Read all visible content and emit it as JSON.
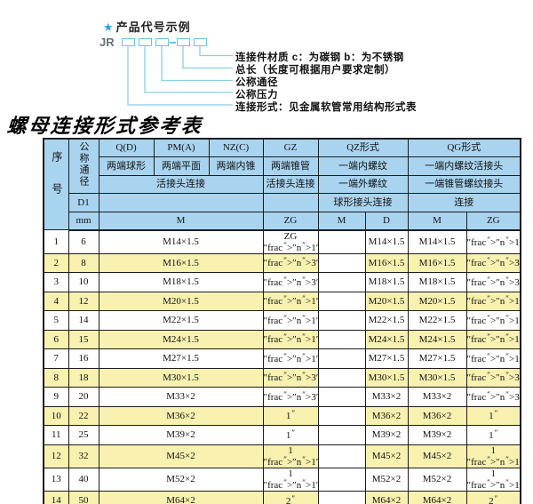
{
  "colors": {
    "header_bg": "#a9d4f0",
    "row_alt_bg": "#f8f1af",
    "accent_blue": "#8ccfe8",
    "box_blue": "#6ec4e4",
    "star_blue": "#2aa4dc"
  },
  "diagram": {
    "star": "★",
    "title": "产品代号示例",
    "prefix": "JR",
    "box_count": 5,
    "labels": [
      "连接件材质  c：为碳钢  b：为不锈钢",
      "总长（长度可根据用户要求定制）",
      "公称通径",
      "公称压力",
      "连接形式：见金属软管常用结构形式表"
    ]
  },
  "table": {
    "title": "螺母连接形式参考表",
    "header": {
      "col_no": "序号",
      "col_dn": "公称通径",
      "q": "Q(D)",
      "pm": "PM(A)",
      "nz": "NZ(C)",
      "gz": "GZ",
      "qz": "QZ形式",
      "qg": "QG形式",
      "q_sub": "两端球形",
      "pm_sub": "两端平面",
      "nz_sub": "两端内锥",
      "gz_sub": "两端锥管",
      "qz_sub1": "一端内螺纹",
      "qg_sub1": "一端内螺纹活接头",
      "union_conn": "活接头连接",
      "gz_conn": "活接头连接",
      "qz_sub2": "一端外螺纹",
      "qg_sub2": "一端锥管螺纹接头",
      "d1": "D1",
      "qz_conn": "球形接头连接",
      "qg_conn": "连接",
      "mm": "mm",
      "m": "M",
      "zg": "ZG",
      "qz_m": "M",
      "qz_d": "D",
      "qg_m": "M",
      "qg_zg": "ZG"
    },
    "rows": [
      {
        "no": "1",
        "dn": "6",
        "m": "M14×1.5",
        "gz": "ZG 1/4\"",
        "qz_m": "",
        "qz_d": "M14×1.5",
        "qg_m": "M14×1.5",
        "qg_zg": "1/4\""
      },
      {
        "no": "2",
        "dn": "8",
        "m": "M16×1.5",
        "gz": "3/8\"",
        "qz_m": "",
        "qz_d": "M16×1.5",
        "qg_m": "M16×1.5",
        "qg_zg": "3/8\""
      },
      {
        "no": "3",
        "dn": "10",
        "m": "M18×1.5",
        "gz": "3/8\"",
        "qz_m": "",
        "qz_d": "M18×1.5",
        "qg_m": "M18×1.5",
        "qg_zg": "3/8\""
      },
      {
        "no": "4",
        "dn": "12",
        "m": "M20×1.5",
        "gz": "1/2\"",
        "qz_m": "",
        "qz_d": "M20×1.5",
        "qg_m": "M20×1.5",
        "qg_zg": "1/2\""
      },
      {
        "no": "5",
        "dn": "14",
        "m": "M22×1.5",
        "gz": "1/2\"",
        "qz_m": "",
        "qz_d": "M22×1.5",
        "qg_m": "M22×1.5",
        "qg_zg": "1/2\""
      },
      {
        "no": "6",
        "dn": "15",
        "m": "M24×1.5",
        "gz": "1/2\"",
        "qz_m": "",
        "qz_d": "M24×1.5",
        "qg_m": "M24×1.5",
        "qg_zg": "1/2\""
      },
      {
        "no": "7",
        "dn": "16",
        "m": "M27×1.5",
        "gz": "1/2\"",
        "qz_m": "",
        "qz_d": "M27×1.5",
        "qg_m": "M27×1.5",
        "qg_zg": "1/2\""
      },
      {
        "no": "8",
        "dn": "18",
        "m": "M30×1.5",
        "gz": "3/4\"",
        "qz_m": "",
        "qz_d": "M30×1.5",
        "qg_m": "M30×1.5",
        "qg_zg": "3/4\""
      },
      {
        "no": "9",
        "dn": "20",
        "m": "M33×2",
        "gz": "3/4\"",
        "qz_m": "",
        "qz_d": "M33×2",
        "qg_m": "M33×2",
        "qg_zg": "3/4\""
      },
      {
        "no": "10",
        "dn": "22",
        "m": "M36×2",
        "gz": "1\"",
        "qz_m": "",
        "qz_d": "M36×2",
        "qg_m": "M36×2",
        "qg_zg": "1\""
      },
      {
        "no": "11",
        "dn": "25",
        "m": "M39×2",
        "gz": "1\"",
        "qz_m": "",
        "qz_d": "M39×2",
        "qg_m": "M39×2",
        "qg_zg": "1\""
      },
      {
        "no": "12",
        "dn": "32",
        "m": "M45×2",
        "gz": "1 1/4\"",
        "qz_m": "",
        "qz_d": "M45×2",
        "qg_m": "M45×2",
        "qg_zg": "1 1/4\""
      },
      {
        "no": "13",
        "dn": "40",
        "m": "M52×2",
        "gz": "1 1/2\"",
        "qz_m": "",
        "qz_d": "M52×2",
        "qg_m": "M52×2",
        "qg_zg": "1 1/2\""
      },
      {
        "no": "14",
        "dn": "50",
        "m": "M64×2",
        "gz": "2\"",
        "qz_m": "",
        "qz_d": "M64×2",
        "qg_m": "M64×2",
        "qg_zg": "2\""
      }
    ]
  }
}
